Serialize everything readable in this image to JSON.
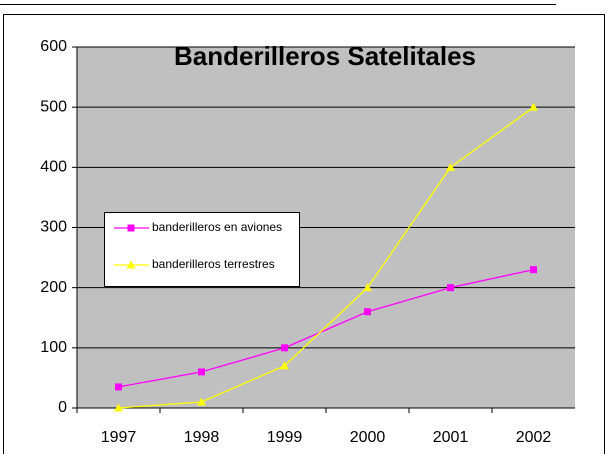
{
  "chart_data": {
    "type": "line",
    "title": "Banderilleros Satelitales",
    "categories": [
      "1997",
      "1998",
      "1999",
      "2000",
      "2001",
      "2002"
    ],
    "series": [
      {
        "name": "banderilleros en aviones",
        "color": "#ff00ff",
        "marker": "square",
        "values": [
          35,
          60,
          100,
          160,
          200,
          230
        ]
      },
      {
        "name": "banderilleros terrestres",
        "color": "#ffff00",
        "marker": "triangle",
        "values": [
          0,
          10,
          70,
          200,
          400,
          500
        ]
      }
    ],
    "ylim": [
      0,
      600
    ],
    "yticks": [
      0,
      100,
      200,
      300,
      400,
      500,
      600
    ],
    "grid": true,
    "plot_background": "#c0c0c0",
    "legend_position": "left"
  }
}
